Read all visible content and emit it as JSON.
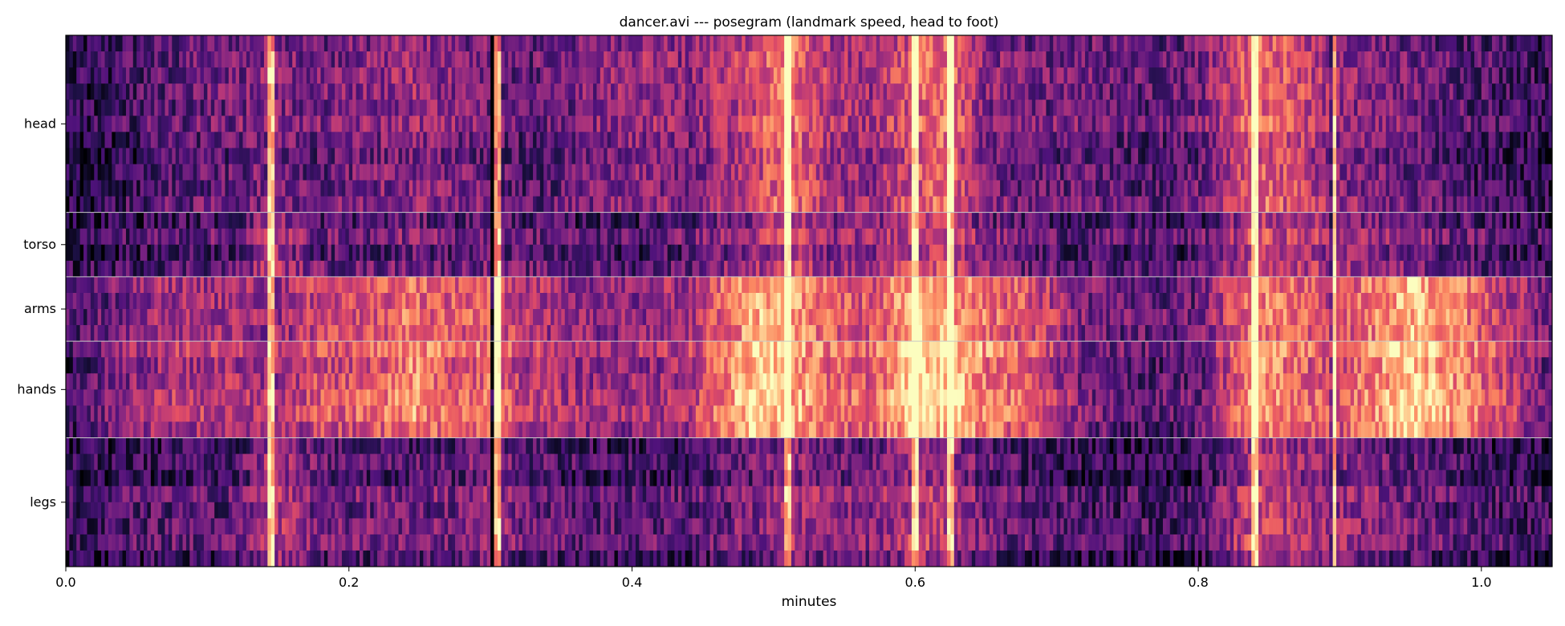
{
  "chart_data": {
    "type": "heatmap",
    "title": "dancer.avi --- posegram (landmark speed, head to foot)",
    "xlabel": "minutes",
    "ylabel": "",
    "xlim": [
      0.0,
      1.05
    ],
    "x_ticks": [
      0.0,
      0.2,
      0.4,
      0.6,
      0.8,
      1.0
    ],
    "x_tick_labels": [
      "0.0",
      "0.2",
      "0.4",
      "0.6",
      "0.8",
      "1.0"
    ],
    "colormap": "magma",
    "grid": false,
    "legend": "none",
    "groups": [
      {
        "label": "head",
        "rows": 11
      },
      {
        "label": "torso",
        "rows": 4
      },
      {
        "label": "arms",
        "rows": 4
      },
      {
        "label": "hands",
        "rows": 6
      },
      {
        "label": "legs",
        "rows": 8
      }
    ],
    "group_separator_color": "#c8c8c8",
    "intensity_profile": {
      "x": [
        0.0,
        0.03,
        0.07,
        0.12,
        0.145,
        0.18,
        0.22,
        0.245,
        0.27,
        0.305,
        0.32,
        0.36,
        0.4,
        0.44,
        0.49,
        0.51,
        0.54,
        0.57,
        0.6,
        0.625,
        0.65,
        0.68,
        0.72,
        0.76,
        0.8,
        0.84,
        0.87,
        0.895,
        0.92,
        0.95,
        0.98,
        1.02,
        1.05
      ],
      "head": [
        0.1,
        0.15,
        0.25,
        0.3,
        0.35,
        0.3,
        0.35,
        0.4,
        0.35,
        0.3,
        0.25,
        0.3,
        0.4,
        0.35,
        0.55,
        0.7,
        0.45,
        0.4,
        0.6,
        0.65,
        0.35,
        0.3,
        0.3,
        0.25,
        0.3,
        0.65,
        0.55,
        0.4,
        0.35,
        0.3,
        0.25,
        0.2,
        0.15
      ],
      "torso": [
        0.15,
        0.2,
        0.25,
        0.28,
        0.5,
        0.3,
        0.3,
        0.35,
        0.3,
        0.35,
        0.3,
        0.25,
        0.25,
        0.3,
        0.45,
        0.6,
        0.4,
        0.4,
        0.55,
        0.55,
        0.35,
        0.3,
        0.25,
        0.25,
        0.25,
        0.55,
        0.5,
        0.45,
        0.4,
        0.35,
        0.3,
        0.25,
        0.2
      ],
      "arms": [
        0.2,
        0.3,
        0.45,
        0.45,
        0.4,
        0.55,
        0.6,
        0.7,
        0.6,
        0.65,
        0.5,
        0.4,
        0.4,
        0.45,
        0.85,
        0.8,
        0.65,
        0.6,
        0.85,
        0.8,
        0.7,
        0.6,
        0.35,
        0.3,
        0.3,
        0.75,
        0.65,
        0.55,
        0.7,
        0.85,
        0.75,
        0.5,
        0.3
      ],
      "hands": [
        0.2,
        0.35,
        0.5,
        0.5,
        0.45,
        0.6,
        0.65,
        0.8,
        0.65,
        0.7,
        0.55,
        0.45,
        0.45,
        0.5,
        0.95,
        0.85,
        0.7,
        0.65,
        0.95,
        0.9,
        0.75,
        0.65,
        0.35,
        0.3,
        0.3,
        0.85,
        0.7,
        0.6,
        0.75,
        0.95,
        0.8,
        0.55,
        0.3
      ],
      "legs": [
        0.15,
        0.2,
        0.25,
        0.25,
        0.5,
        0.3,
        0.3,
        0.3,
        0.3,
        0.4,
        0.3,
        0.25,
        0.25,
        0.25,
        0.35,
        0.45,
        0.35,
        0.35,
        0.5,
        0.45,
        0.3,
        0.25,
        0.2,
        0.2,
        0.2,
        0.55,
        0.45,
        0.4,
        0.35,
        0.3,
        0.25,
        0.2,
        0.2
      ]
    },
    "bright_lines": [
      0.145,
      0.305,
      0.51,
      0.6,
      0.625,
      0.84,
      0.895
    ],
    "dark_lines": [
      0.302,
      0.893
    ]
  }
}
